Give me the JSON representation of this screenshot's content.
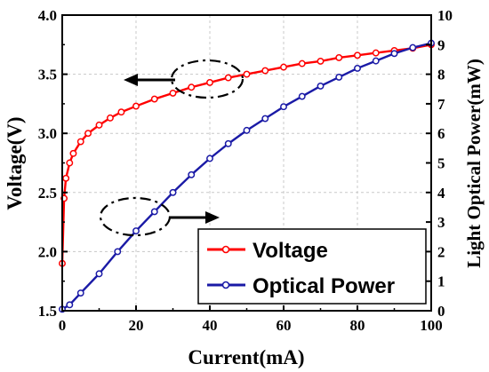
{
  "chart_data": {
    "type": "line",
    "title": "",
    "xlabel": "Current(mA)",
    "ylabel": "Voltage(V)",
    "ylabel_right": "Light Optical Power(mW)",
    "xlim": [
      0,
      100
    ],
    "ylim": [
      1.5,
      4.0
    ],
    "ylim_right": [
      0,
      10
    ],
    "x_ticks": [
      "0",
      "20",
      "40",
      "60",
      "80",
      "100"
    ],
    "y_ticks": [
      "1.5",
      "2.0",
      "2.5",
      "3.0",
      "3.5",
      "4.0"
    ],
    "y_ticks_right": [
      "0",
      "1",
      "2",
      "3",
      "4",
      "5",
      "6",
      "7",
      "8",
      "9",
      "10"
    ],
    "grid": true,
    "legend_position": "bottom-right",
    "series": [
      {
        "name": "Voltage",
        "axis": "left",
        "color": "#ff0000",
        "x": [
          0,
          0.5,
          1,
          2,
          3,
          5,
          7,
          10,
          13,
          16,
          20,
          25,
          30,
          35,
          40,
          45,
          50,
          55,
          60,
          65,
          70,
          75,
          80,
          85,
          90,
          95,
          100
        ],
        "y": [
          1.9,
          2.45,
          2.62,
          2.75,
          2.83,
          2.93,
          3.0,
          3.07,
          3.13,
          3.18,
          3.23,
          3.29,
          3.34,
          3.39,
          3.43,
          3.47,
          3.5,
          3.53,
          3.56,
          3.59,
          3.61,
          3.64,
          3.66,
          3.68,
          3.7,
          3.72,
          3.75
        ]
      },
      {
        "name": "Optical Power",
        "axis": "right",
        "color": "#1a1aa6",
        "x": [
          0,
          2,
          5,
          10,
          15,
          20,
          25,
          30,
          35,
          40,
          45,
          50,
          55,
          60,
          65,
          70,
          75,
          80,
          85,
          90,
          95,
          100
        ],
        "y": [
          0.05,
          0.2,
          0.6,
          1.25,
          2.0,
          2.7,
          3.35,
          4.0,
          4.6,
          5.15,
          5.65,
          6.1,
          6.5,
          6.9,
          7.25,
          7.6,
          7.9,
          8.2,
          8.45,
          8.7,
          8.9,
          9.05
        ]
      }
    ],
    "annotations": [
      "left-arrow-ellipse",
      "right-arrow-ellipse"
    ]
  }
}
